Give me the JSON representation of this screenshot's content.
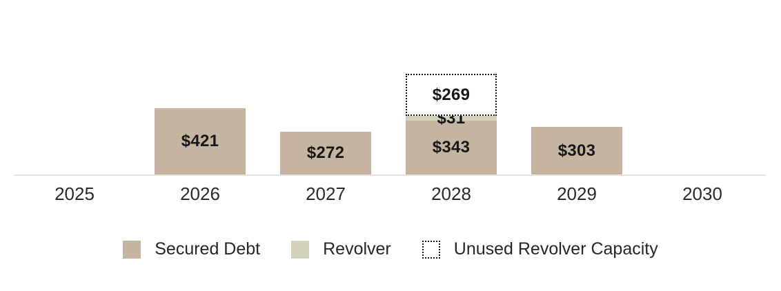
{
  "chart_data": {
    "type": "bar",
    "stacked": true,
    "title": "",
    "xlabel": "",
    "ylabel": "",
    "y_axis_visible": false,
    "grid": false,
    "legend_position": "bottom",
    "label_format": "$value",
    "ylim": [
      0,
      660
    ],
    "categories": [
      "2025",
      "2026",
      "2027",
      "2028",
      "2029",
      "2030"
    ],
    "series": [
      {
        "name": "Secured Debt",
        "color": "#c5b5a0",
        "swatch_style": "solid",
        "values": [
          null,
          421,
          272,
          343,
          303,
          null
        ]
      },
      {
        "name": "Revolver",
        "color": "#d3d1bb",
        "swatch_style": "solid",
        "values": [
          null,
          null,
          null,
          31,
          null,
          null
        ]
      },
      {
        "name": "Unused Revolver Capacity",
        "color": "#ffffff",
        "swatch_style": "dotted",
        "border_color": "#161616",
        "values": [
          null,
          null,
          null,
          269,
          null,
          null
        ]
      }
    ],
    "data_labels_shown": [
      "$421",
      "$272",
      "$343",
      "$31",
      "$269",
      "$303"
    ]
  },
  "style": {
    "axis_line_color": "#e4e3e0",
    "value_label_color": "#171717",
    "tick_label_color": "#2b2a28"
  }
}
